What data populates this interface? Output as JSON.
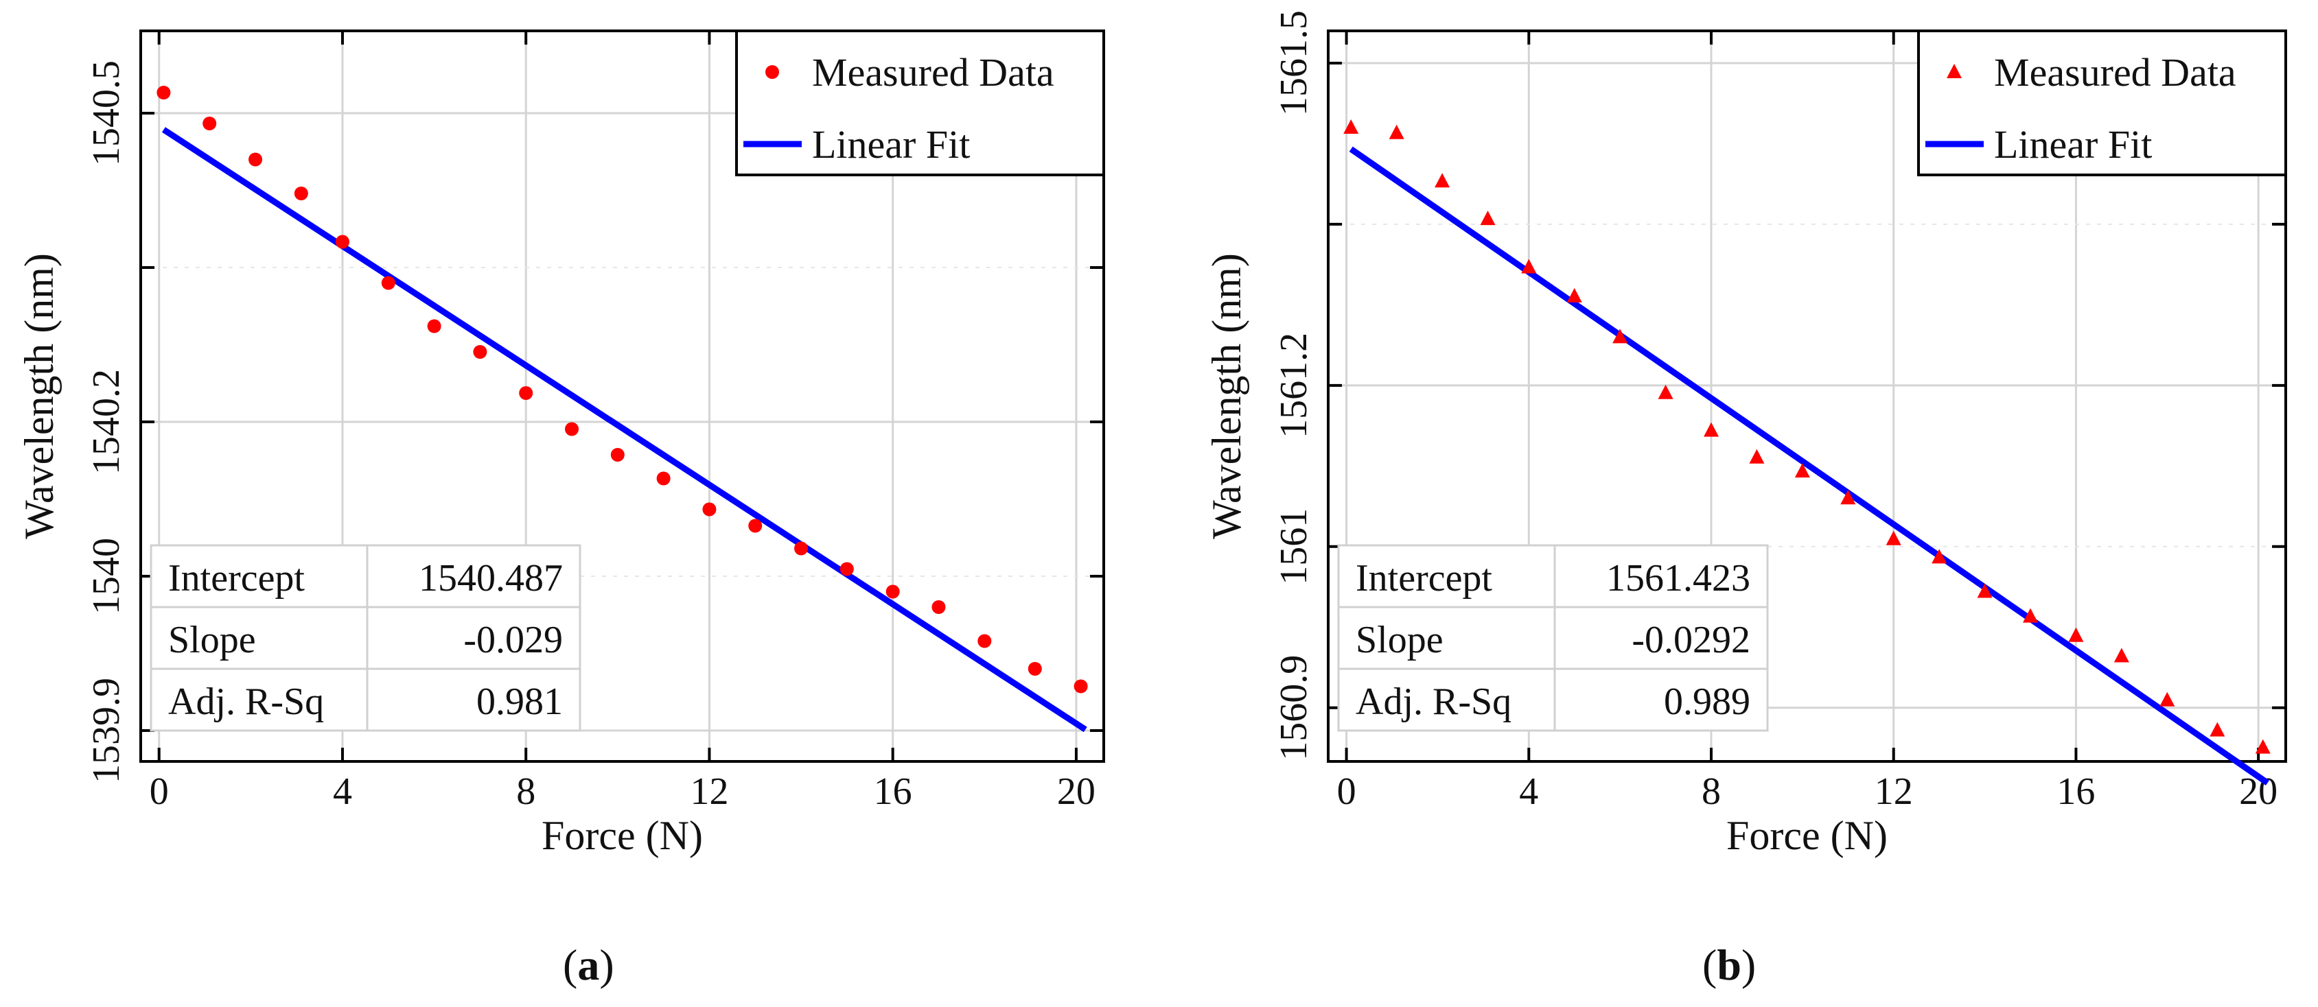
{
  "chart_data": [
    {
      "type": "scatter",
      "panel_label": "a",
      "xlabel": "Force (N)",
      "ylabel": "Wavelength (nm)",
      "xlim": [
        -0.4,
        20.6
      ],
      "ylim": [
        1539.87,
        1540.58
      ],
      "xticks": [
        0,
        4,
        8,
        12,
        16,
        20
      ],
      "xtick_labels": [
        "0",
        "4",
        "8",
        "12",
        "16",
        "20"
      ],
      "yticks": [
        1539.9,
        1540.2,
        1540.5
      ],
      "ytick_labels": [
        "1539.9",
        "1540.2",
        "1540.5"
      ],
      "ytick_minor": [
        1540.05,
        1540.35
      ],
      "ytick_minor_labels": [
        "1540"
      ],
      "grid": true,
      "marker": "circle",
      "series": [
        {
          "name": "Measured Data",
          "x": [
            0.1,
            1.1,
            2.1,
            3.1,
            4.0,
            5.0,
            6.0,
            7.0,
            8.0,
            9.0,
            10.0,
            11.0,
            12.0,
            13.0,
            14.0,
            15.0,
            16.0,
            17.0,
            18.0,
            19.1,
            20.1
          ],
          "y": [
            1540.52,
            1540.49,
            1540.455,
            1540.422,
            1540.375,
            1540.335,
            1540.293,
            1540.268,
            1540.228,
            1540.193,
            1540.168,
            1540.145,
            1540.115,
            1540.099,
            1540.077,
            1540.057,
            1540.035,
            1540.02,
            1539.987,
            1539.96,
            1539.943
          ]
        },
        {
          "name": "Linear Fit",
          "x": [
            0.1,
            20.2
          ],
          "y": [
            1540.484,
            1539.901
          ]
        }
      ],
      "legend": {
        "position": "top-right",
        "items": [
          "Measured Data",
          "Linear Fit"
        ]
      },
      "stats_table": [
        [
          "Intercept",
          "1540.487"
        ],
        [
          "Slope",
          "-0.029"
        ],
        [
          "Adj. R-Sq",
          "0.981"
        ]
      ],
      "colors": {
        "points": "#ff0000",
        "fit": "#0000ff"
      }
    },
    {
      "type": "scatter",
      "panel_label": "b",
      "xlabel": "Force (N)",
      "ylabel": "Wavelength (nm)",
      "xlim": [
        -0.4,
        20.6
      ],
      "ylim": [
        1560.85,
        1561.53
      ],
      "xticks": [
        0,
        4,
        8,
        12,
        16,
        20
      ],
      "xtick_labels": [
        "0",
        "4",
        "8",
        "12",
        "16",
        "20"
      ],
      "yticks": [
        1560.9,
        1561.2,
        1561.5
      ],
      "ytick_labels": [
        "1560.9",
        "1561.2",
        "1561.5"
      ],
      "ytick_minor": [
        1561.05,
        1561.35
      ],
      "ytick_minor_labels": [
        "1561"
      ],
      "grid": true,
      "marker": "triangle",
      "series": [
        {
          "name": "Measured Data",
          "x": [
            0.1,
            1.1,
            2.1,
            3.1,
            4.0,
            5.0,
            6.0,
            7.0,
            8.0,
            9.0,
            10.0,
            11.0,
            12.0,
            13.0,
            14.0,
            15.0,
            16.0,
            17.0,
            18.0,
            19.1,
            20.1
          ],
          "y": [
            1561.44,
            1561.435,
            1561.39,
            1561.355,
            1561.31,
            1561.283,
            1561.245,
            1561.193,
            1561.158,
            1561.133,
            1561.12,
            1561.095,
            1561.057,
            1561.04,
            1561.008,
            1560.985,
            1560.967,
            1560.948,
            1560.907,
            1560.879,
            1560.863
          ]
        },
        {
          "name": "Linear Fit",
          "x": [
            0.1,
            20.2
          ],
          "y": [
            1561.42,
            1560.83
          ]
        }
      ],
      "legend": {
        "position": "top-right",
        "items": [
          "Measured Data",
          "Linear Fit"
        ]
      },
      "stats_table": [
        [
          "Intercept",
          "1561.423"
        ],
        [
          "Slope",
          "-0.0292"
        ],
        [
          "Adj. R-Sq",
          "0.989"
        ]
      ],
      "colors": {
        "points": "#ff0000",
        "fit": "#0000ff"
      }
    }
  ],
  "captions": {
    "a": {
      "open": "(",
      "label": "a",
      "close": ")"
    },
    "b": {
      "open": "(",
      "label": "b",
      "close": ")"
    }
  }
}
